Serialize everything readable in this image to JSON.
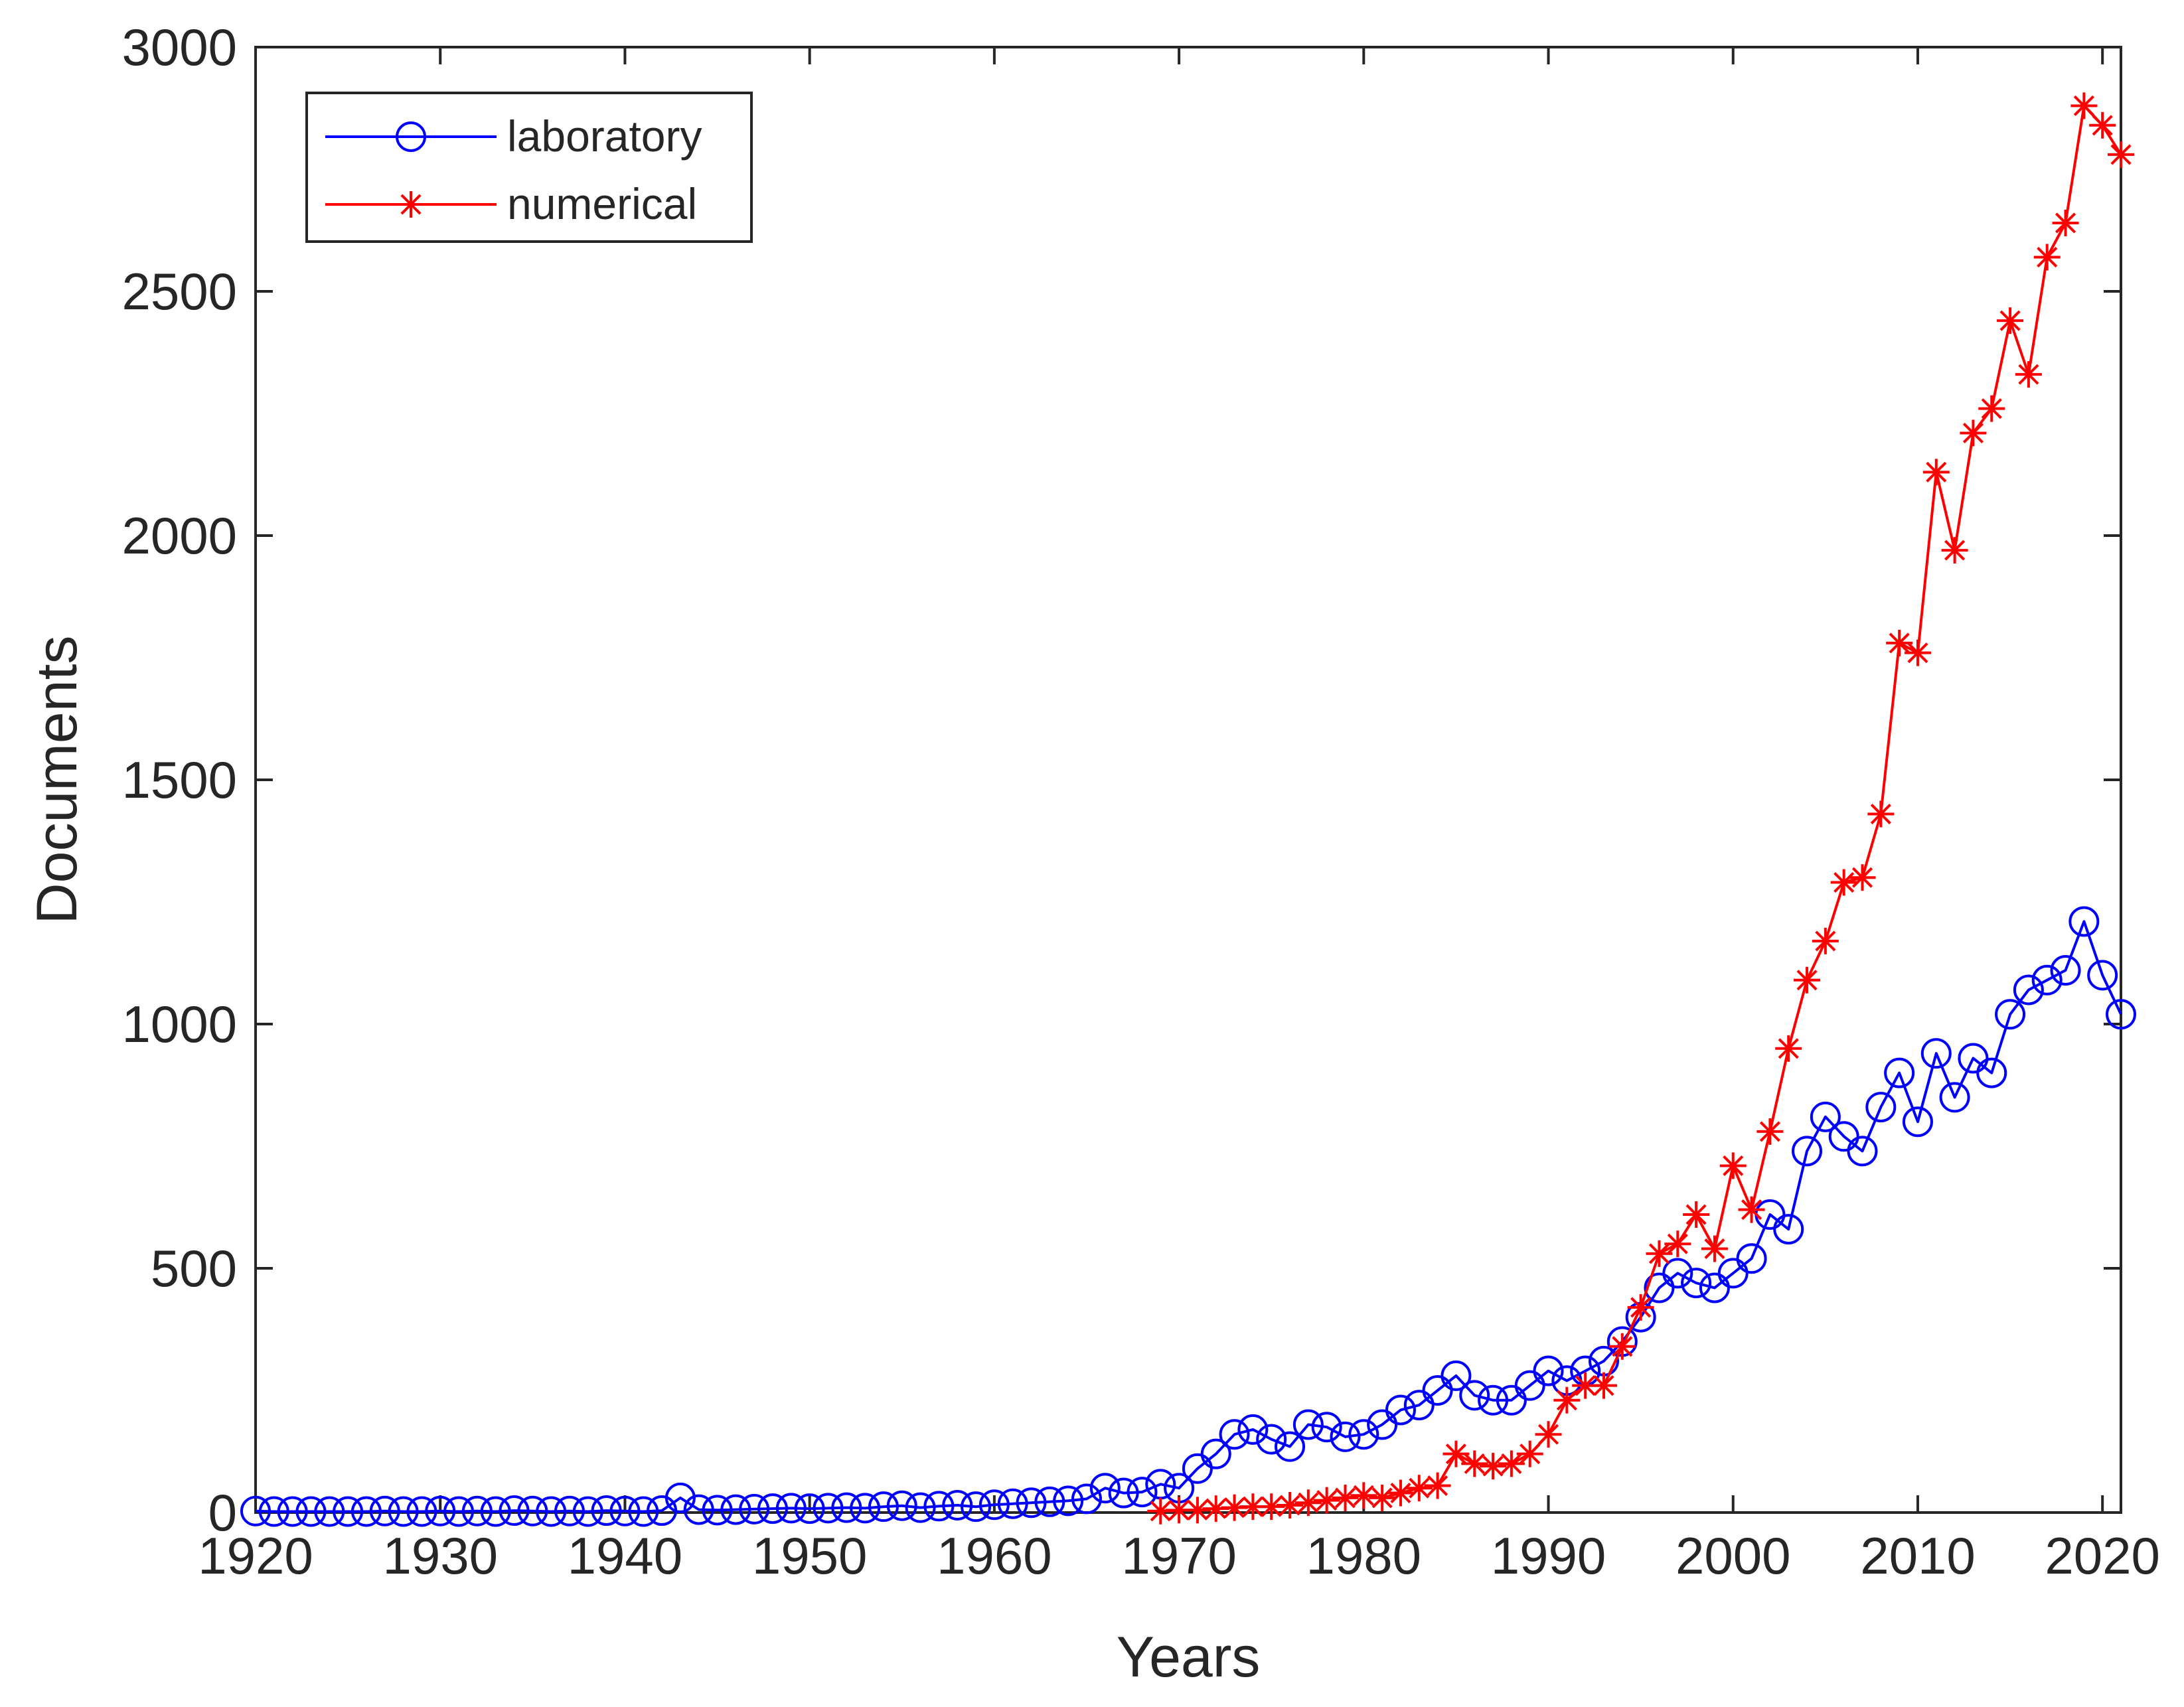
{
  "chart_data": {
    "type": "line",
    "title": "",
    "xlabel": "Years",
    "ylabel": "Documents",
    "xlim": [
      1920,
      2021
    ],
    "ylim": [
      0,
      3000
    ],
    "xticks": [
      "1920",
      "1930",
      "1940",
      "1950",
      "1960",
      "1970",
      "1980",
      "1990",
      "2000",
      "2010",
      "2020"
    ],
    "yticks": [
      "0",
      "500",
      "1000",
      "1500",
      "2000",
      "2500",
      "3000"
    ],
    "grid": false,
    "legend_position": "top-left",
    "series": [
      {
        "name": "laboratory",
        "color": "#0000ff",
        "marker": "circle",
        "x": [
          1920,
          1921,
          1922,
          1923,
          1924,
          1925,
          1926,
          1927,
          1928,
          1929,
          1930,
          1931,
          1932,
          1933,
          1934,
          1935,
          1936,
          1937,
          1938,
          1939,
          1940,
          1941,
          1942,
          1943,
          1944,
          1945,
          1946,
          1947,
          1948,
          1949,
          1950,
          1951,
          1952,
          1953,
          1954,
          1955,
          1956,
          1957,
          1958,
          1959,
          1960,
          1961,
          1962,
          1963,
          1964,
          1965,
          1966,
          1967,
          1968,
          1969,
          1970,
          1971,
          1972,
          1973,
          1974,
          1975,
          1976,
          1977,
          1978,
          1979,
          1980,
          1981,
          1982,
          1983,
          1984,
          1985,
          1986,
          1987,
          1988,
          1989,
          1990,
          1991,
          1992,
          1993,
          1994,
          1995,
          1996,
          1997,
          1998,
          1999,
          2000,
          2001,
          2002,
          2003,
          2004,
          2005,
          2006,
          2007,
          2008,
          2009,
          2010,
          2011,
          2012,
          2013,
          2014,
          2015,
          2016,
          2017,
          2018,
          2019,
          2020,
          2021
        ],
        "values": [
          3,
          2,
          2,
          2,
          2,
          2,
          2,
          3,
          2,
          2,
          3,
          2,
          3,
          2,
          4,
          3,
          2,
          3,
          2,
          4,
          3,
          2,
          4,
          30,
          6,
          5,
          6,
          7,
          8,
          9,
          8,
          9,
          10,
          9,
          12,
          14,
          10,
          13,
          15,
          12,
          16,
          18,
          20,
          22,
          24,
          28,
          50,
          40,
          42,
          58,
          50,
          90,
          120,
          160,
          170,
          150,
          135,
          180,
          175,
          155,
          160,
          180,
          210,
          220,
          250,
          280,
          240,
          230,
          230,
          260,
          290,
          270,
          290,
          310,
          350,
          400,
          460,
          490,
          470,
          460,
          490,
          520,
          610,
          580,
          740,
          810,
          770,
          740,
          830,
          900,
          800,
          940,
          850,
          930,
          900,
          1020,
          1070,
          1090,
          1110,
          1210,
          1100,
          1020
        ]
      },
      {
        "name": "numerical",
        "color": "#ff0000",
        "marker": "asterisk",
        "x": [
          1969,
          1970,
          1971,
          1972,
          1973,
          1974,
          1975,
          1976,
          1977,
          1978,
          1979,
          1980,
          1981,
          1982,
          1983,
          1984,
          1985,
          1986,
          1987,
          1988,
          1989,
          1990,
          1991,
          1992,
          1993,
          1994,
          1995,
          1996,
          1997,
          1998,
          1999,
          2000,
          2001,
          2002,
          2003,
          2004,
          2005,
          2006,
          2007,
          2008,
          2009,
          2010,
          2011,
          2012,
          2013,
          2014,
          2015,
          2016,
          2017,
          2018,
          2019,
          2020,
          2021
        ],
        "values": [
          3,
          5,
          5,
          8,
          10,
          12,
          12,
          15,
          20,
          25,
          30,
          35,
          30,
          40,
          50,
          55,
          120,
          100,
          95,
          100,
          120,
          160,
          230,
          260,
          260,
          340,
          420,
          530,
          550,
          610,
          540,
          710,
          620,
          780,
          950,
          1090,
          1170,
          1290,
          1300,
          1430,
          1780,
          1760,
          2130,
          1970,
          2210,
          2260,
          2440,
          2330,
          2570,
          2640,
          2880,
          2840,
          2780
        ]
      }
    ]
  }
}
